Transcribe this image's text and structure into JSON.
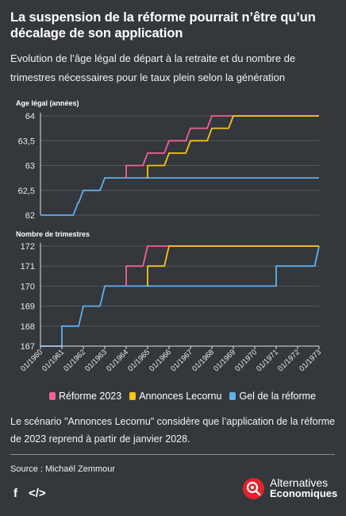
{
  "header": {
    "title": "La suspension de la réforme pourrait n’être qu’un décalage de son application",
    "subtitle": "Evolution de l’âge légal de départ à la retraite et du nombre de trimestres nécessaires pour le taux plein selon la génération"
  },
  "chart_data": [
    {
      "type": "line",
      "step": true,
      "ylabel": "Age légal (années)",
      "ylim": [
        62,
        64
      ],
      "yticks": [
        "62",
        "62,5",
        "63",
        "63,5",
        "64"
      ],
      "ytick_values": [
        62,
        62.5,
        63,
        63.5,
        64
      ],
      "x_categories": [
        "01/1960",
        "01/1961",
        "01/1962",
        "01/1963",
        "01/1964",
        "01/1965",
        "01/1966",
        "01/1967",
        "01/1968",
        "01/1969",
        "01/1970",
        "01/1971",
        "01/1972",
        "01/1973"
      ],
      "series": [
        {
          "name": "Réforme 2023",
          "color": "#f0609a",
          "points": [
            [
              1964.0,
              62.75
            ],
            [
              1964.0,
              63.0
            ],
            [
              1965.0,
              63.25
            ],
            [
              1966.0,
              63.5
            ],
            [
              1967.0,
              63.75
            ],
            [
              1968.0,
              64.0
            ],
            [
              1973.0,
              64.0
            ]
          ]
        },
        {
          "name": "Annonces Lecornu",
          "color": "#f5c518",
          "points": [
            [
              1965.0,
              62.75
            ],
            [
              1965.0,
              63.0
            ],
            [
              1966.0,
              63.25
            ],
            [
              1967.0,
              63.5
            ],
            [
              1968.0,
              63.75
            ],
            [
              1969.0,
              64.0
            ],
            [
              1973.0,
              64.0
            ]
          ]
        },
        {
          "name": "Gel de la réforme",
          "color": "#5fb0f0",
          "points": [
            [
              1960.0,
              62.0
            ],
            [
              1961.5,
              62.0
            ],
            [
              1961.75,
              62.25
            ],
            [
              1962.0,
              62.5
            ],
            [
              1963.0,
              62.75
            ],
            [
              1973.0,
              62.75
            ]
          ]
        }
      ]
    },
    {
      "type": "line",
      "step": true,
      "ylabel": "Nombre de trimestres",
      "ylim": [
        167,
        172
      ],
      "yticks": [
        "167",
        "168",
        "169",
        "170",
        "171",
        "172"
      ],
      "ytick_values": [
        167,
        168,
        169,
        170,
        171,
        172
      ],
      "x_categories": [
        "01/1960",
        "01/1961",
        "01/1962",
        "01/1963",
        "01/1964",
        "01/1965",
        "01/1966",
        "01/1967",
        "01/1968",
        "01/1969",
        "01/1970",
        "01/1971",
        "01/1972",
        "01/1973"
      ],
      "series": [
        {
          "name": "Réforme 2023",
          "color": "#f0609a",
          "points": [
            [
              1964.0,
              170.0
            ],
            [
              1964.0,
              171.0
            ],
            [
              1965.0,
              172.0
            ],
            [
              1973.0,
              172.0
            ]
          ]
        },
        {
          "name": "Annonces Lecornu",
          "color": "#f5c518",
          "points": [
            [
              1965.0,
              170.0
            ],
            [
              1965.0,
              171.0
            ],
            [
              1966.0,
              172.0
            ],
            [
              1973.0,
              172.0
            ]
          ]
        },
        {
          "name": "Gel de la réforme",
          "color": "#5fb0f0",
          "points": [
            [
              1960.0,
              167.0
            ],
            [
              1961.0,
              167.0
            ],
            [
              1961.0,
              168.0
            ],
            [
              1962.0,
              169.0
            ],
            [
              1963.0,
              170.0
            ],
            [
              1971.0,
              170.0
            ],
            [
              1971.0,
              171.0
            ],
            [
              1972.8,
              171.0
            ],
            [
              1973.0,
              172.0
            ]
          ]
        }
      ]
    }
  ],
  "legend": {
    "items": [
      {
        "label": "Réforme 2023",
        "color": "#f0609a"
      },
      {
        "label": "Annonces Lecornu",
        "color": "#f5c518"
      },
      {
        "label": "Gel de la réforme",
        "color": "#5fb0f0"
      }
    ]
  },
  "footer": {
    "note": "Le scénario \"Annonces Lecornu\" considère que l’application de la réforme de 2023 reprend à partir de janvier 2028.",
    "source": "Source : Michaël Zemmour",
    "social_facebook": "f",
    "social_embed": "</>",
    "brand_line1": "Alternatives",
    "brand_line2": "Economiques"
  }
}
